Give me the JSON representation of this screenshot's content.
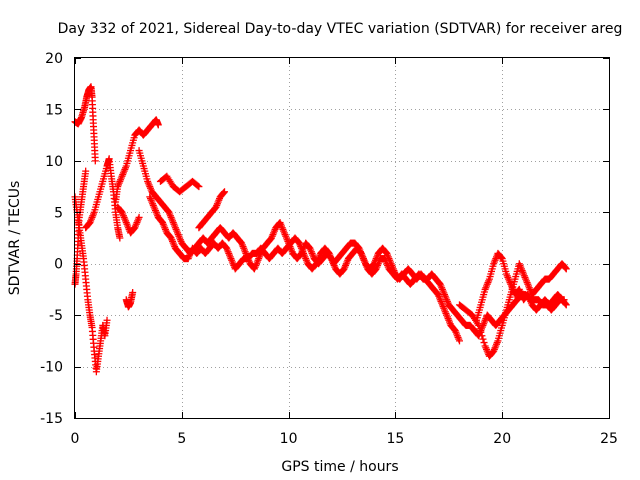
{
  "chart_data": {
    "type": "scatter",
    "title": "Day 332 of 2021, Sidereal Day-to-day VTEC variation (SDTVAR) for receiver areg",
    "xlabel": "GPS time / hours",
    "ylabel": "SDTVAR / TECUs",
    "xlim": [
      0,
      25
    ],
    "ylim": [
      -15,
      20
    ],
    "xticks": [
      0,
      5,
      10,
      15,
      20,
      25
    ],
    "yticks": [
      -15,
      -10,
      -5,
      0,
      5,
      10,
      15,
      20
    ],
    "grid": true,
    "marker": "+",
    "color": "#ff0000",
    "series": [
      {
        "name": "trace-1",
        "values": [
          [
            0.0,
            13.8
          ],
          [
            0.15,
            13.6
          ],
          [
            0.3,
            14.2
          ],
          [
            0.45,
            15.2
          ],
          [
            0.55,
            16.2
          ],
          [
            0.65,
            16.9
          ],
          [
            0.75,
            17.2
          ],
          [
            0.8,
            16.2
          ],
          [
            0.85,
            14.0
          ],
          [
            0.9,
            12.0
          ],
          [
            0.95,
            10.0
          ]
        ]
      },
      {
        "name": "trace-2",
        "values": [
          [
            0.0,
            6.5
          ],
          [
            0.1,
            5.0
          ],
          [
            0.2,
            3.5
          ],
          [
            0.3,
            2.0
          ],
          [
            0.4,
            0.5
          ],
          [
            0.5,
            -1.5
          ],
          [
            0.6,
            -3.5
          ],
          [
            0.7,
            -5.0
          ],
          [
            0.8,
            -6.2
          ],
          [
            0.9,
            -8.5
          ],
          [
            1.0,
            -10.5
          ],
          [
            1.1,
            -9.0
          ],
          [
            1.2,
            -7.5
          ],
          [
            1.3,
            -6.0
          ],
          [
            1.4,
            -7.0
          ],
          [
            1.5,
            -5.5
          ]
        ]
      },
      {
        "name": "trace-3",
        "values": [
          [
            0.0,
            -2.0
          ],
          [
            0.05,
            -1.0
          ],
          [
            0.1,
            0.5
          ],
          [
            0.15,
            2.5
          ],
          [
            0.2,
            4.5
          ],
          [
            0.3,
            6.0
          ],
          [
            0.4,
            7.5
          ],
          [
            0.5,
            9.0
          ]
        ]
      },
      {
        "name": "trace-4",
        "values": [
          [
            0.5,
            3.5
          ],
          [
            0.7,
            4.0
          ],
          [
            0.9,
            5.0
          ],
          [
            1.1,
            6.5
          ],
          [
            1.3,
            8.0
          ],
          [
            1.5,
            9.5
          ],
          [
            1.6,
            10.2
          ],
          [
            1.7,
            8.5
          ],
          [
            1.8,
            7.0
          ],
          [
            1.9,
            5.0
          ],
          [
            2.0,
            3.5
          ],
          [
            2.1,
            2.5
          ]
        ]
      },
      {
        "name": "trace-5",
        "values": [
          [
            1.9,
            6.0
          ],
          [
            2.0,
            7.5
          ],
          [
            2.2,
            8.5
          ],
          [
            2.4,
            9.5
          ],
          [
            2.6,
            11.0
          ],
          [
            2.8,
            12.5
          ],
          [
            3.0,
            13.0
          ],
          [
            3.2,
            12.5
          ],
          [
            3.4,
            13.0
          ],
          [
            3.6,
            13.5
          ],
          [
            3.8,
            14.0
          ],
          [
            3.9,
            13.5
          ]
        ]
      },
      {
        "name": "trace-6",
        "values": [
          [
            2.0,
            5.5
          ],
          [
            2.2,
            5.0
          ],
          [
            2.4,
            4.0
          ],
          [
            2.6,
            3.0
          ],
          [
            2.8,
            3.5
          ],
          [
            3.0,
            4.5
          ]
        ]
      },
      {
        "name": "trace-7",
        "values": [
          [
            2.4,
            -3.5
          ],
          [
            2.5,
            -4.2
          ],
          [
            2.6,
            -3.8
          ],
          [
            2.7,
            -2.8
          ]
        ]
      },
      {
        "name": "trace-8",
        "values": [
          [
            3.0,
            11.0
          ],
          [
            3.2,
            9.5
          ],
          [
            3.4,
            8.0
          ],
          [
            3.6,
            7.0
          ],
          [
            3.8,
            6.5
          ],
          [
            4.0,
            6.0
          ],
          [
            4.2,
            5.5
          ],
          [
            4.4,
            5.0
          ],
          [
            4.6,
            4.0
          ],
          [
            4.8,
            3.0
          ],
          [
            5.0,
            2.0
          ],
          [
            5.2,
            1.5
          ],
          [
            5.4,
            1.0
          ],
          [
            5.6,
            1.5
          ],
          [
            5.8,
            2.0
          ],
          [
            6.0,
            2.5
          ],
          [
            6.2,
            2.0
          ],
          [
            6.4,
            2.5
          ],
          [
            6.6,
            3.0
          ],
          [
            6.8,
            3.5
          ],
          [
            7.0,
            3.0
          ],
          [
            7.2,
            2.5
          ],
          [
            7.4,
            3.0
          ],
          [
            7.6,
            2.5
          ],
          [
            7.8,
            2.0
          ],
          [
            8.0,
            1.0
          ],
          [
            8.2,
            0.0
          ],
          [
            8.4,
            -0.5
          ],
          [
            8.6,
            0.5
          ],
          [
            8.8,
            1.5
          ],
          [
            9.0,
            2.0
          ],
          [
            9.2,
            2.5
          ],
          [
            9.4,
            3.5
          ],
          [
            9.6,
            4.0
          ],
          [
            9.8,
            3.0
          ],
          [
            10.0,
            2.0
          ],
          [
            10.2,
            1.0
          ],
          [
            10.4,
            0.5
          ],
          [
            10.6,
            1.0
          ],
          [
            10.8,
            2.0
          ],
          [
            11.0,
            1.5
          ],
          [
            11.2,
            0.5
          ],
          [
            11.4,
            0.0
          ],
          [
            11.6,
            0.5
          ],
          [
            11.8,
            1.0
          ],
          [
            12.0,
            0.5
          ],
          [
            12.2,
            -0.5
          ],
          [
            12.4,
            -1.0
          ],
          [
            12.6,
            -0.5
          ],
          [
            12.8,
            0.5
          ],
          [
            13.0,
            1.0
          ],
          [
            13.2,
            1.5
          ],
          [
            13.4,
            1.0
          ],
          [
            13.6,
            0.0
          ],
          [
            13.8,
            -0.5
          ],
          [
            14.0,
            0.0
          ],
          [
            14.2,
            1.0
          ],
          [
            14.4,
            1.5
          ],
          [
            14.6,
            1.0
          ],
          [
            14.8,
            0.0
          ],
          [
            15.0,
            -1.0
          ],
          [
            15.2,
            -1.5
          ],
          [
            15.4,
            -1.0
          ],
          [
            15.6,
            -0.5
          ],
          [
            15.8,
            -1.0
          ],
          [
            16.0,
            -1.5
          ],
          [
            16.2,
            -1.0
          ],
          [
            16.4,
            -1.5
          ],
          [
            16.6,
            -2.0
          ],
          [
            16.8,
            -2.5
          ],
          [
            17.0,
            -3.0
          ],
          [
            17.2,
            -4.0
          ],
          [
            17.4,
            -5.0
          ],
          [
            17.6,
            -6.0
          ],
          [
            17.8,
            -6.5
          ],
          [
            18.0,
            -7.5
          ]
        ]
      },
      {
        "name": "trace-9",
        "values": [
          [
            3.5,
            6.5
          ],
          [
            3.7,
            5.5
          ],
          [
            3.9,
            4.5
          ],
          [
            4.1,
            4.0
          ],
          [
            4.3,
            3.0
          ],
          [
            4.5,
            2.5
          ],
          [
            4.7,
            1.5
          ],
          [
            4.9,
            1.0
          ],
          [
            5.1,
            0.5
          ],
          [
            5.3,
            0.5
          ],
          [
            5.5,
            1.5
          ],
          [
            5.7,
            1.0
          ],
          [
            5.9,
            1.5
          ],
          [
            6.1,
            1.0
          ],
          [
            6.3,
            1.5
          ],
          [
            6.5,
            2.0
          ],
          [
            6.7,
            1.5
          ],
          [
            6.9,
            2.0
          ],
          [
            7.1,
            1.5
          ],
          [
            7.3,
            0.5
          ],
          [
            7.5,
            -0.5
          ],
          [
            7.7,
            0.0
          ],
          [
            7.9,
            0.5
          ],
          [
            8.1,
            0.5
          ],
          [
            8.3,
            1.0
          ],
          [
            8.5,
            1.0
          ],
          [
            8.7,
            1.5
          ],
          [
            8.9,
            1.0
          ],
          [
            9.1,
            0.5
          ],
          [
            9.3,
            1.0
          ],
          [
            9.5,
            1.5
          ],
          [
            9.7,
            1.0
          ],
          [
            9.9,
            1.5
          ],
          [
            10.1,
            2.0
          ],
          [
            10.3,
            2.5
          ],
          [
            10.5,
            2.0
          ],
          [
            10.7,
            1.0
          ],
          [
            10.9,
            0.0
          ],
          [
            11.1,
            -0.5
          ],
          [
            11.3,
            0.0
          ],
          [
            11.5,
            1.0
          ],
          [
            11.7,
            1.5
          ],
          [
            11.9,
            1.0
          ],
          [
            12.1,
            0.0
          ],
          [
            12.3,
            0.5
          ],
          [
            12.5,
            1.0
          ],
          [
            12.7,
            1.5
          ],
          [
            12.9,
            2.0
          ],
          [
            13.1,
            2.0
          ],
          [
            13.3,
            1.5
          ],
          [
            13.5,
            0.5
          ],
          [
            13.7,
            -0.5
          ],
          [
            13.9,
            -1.0
          ],
          [
            14.1,
            -0.5
          ],
          [
            14.3,
            0.5
          ],
          [
            14.5,
            0.5
          ],
          [
            14.7,
            -0.5
          ],
          [
            14.9,
            -1.0
          ],
          [
            15.1,
            -1.5
          ],
          [
            15.3,
            -1.0
          ],
          [
            15.5,
            -1.5
          ],
          [
            15.7,
            -2.0
          ],
          [
            15.9,
            -1.5
          ],
          [
            16.1,
            -1.0
          ],
          [
            16.3,
            -1.5
          ],
          [
            16.5,
            -1.5
          ],
          [
            16.7,
            -1.0
          ],
          [
            16.9,
            -1.5
          ],
          [
            17.1,
            -2.0
          ],
          [
            17.3,
            -3.0
          ],
          [
            17.5,
            -4.0
          ],
          [
            17.7,
            -4.5
          ],
          [
            17.9,
            -5.0
          ],
          [
            18.1,
            -5.5
          ],
          [
            18.3,
            -6.0
          ],
          [
            18.5,
            -6.0
          ],
          [
            18.7,
            -6.5
          ],
          [
            18.9,
            -7.0
          ],
          [
            19.1,
            -6.0
          ],
          [
            19.3,
            -5.0
          ],
          [
            19.5,
            -5.5
          ],
          [
            19.7,
            -6.0
          ],
          [
            19.9,
            -5.5
          ],
          [
            20.1,
            -5.0
          ],
          [
            20.3,
            -4.5
          ],
          [
            20.5,
            -4.0
          ],
          [
            20.7,
            -3.5
          ],
          [
            20.9,
            -3.0
          ],
          [
            21.1,
            -3.0
          ],
          [
            21.3,
            -3.5
          ],
          [
            21.5,
            -3.5
          ],
          [
            21.7,
            -3.5
          ],
          [
            21.9,
            -4.0
          ],
          [
            22.1,
            -4.0
          ],
          [
            22.3,
            -4.5
          ],
          [
            22.5,
            -4.0
          ],
          [
            22.7,
            -3.5
          ],
          [
            22.9,
            -3.5
          ]
        ]
      },
      {
        "name": "trace-10",
        "values": [
          [
            4.0,
            8.0
          ],
          [
            4.3,
            8.5
          ],
          [
            4.6,
            7.5
          ],
          [
            4.9,
            7.0
          ],
          [
            5.2,
            7.5
          ],
          [
            5.5,
            8.0
          ],
          [
            5.8,
            7.5
          ]
        ]
      },
      {
        "name": "trace-11",
        "values": [
          [
            5.8,
            3.5
          ],
          [
            6.0,
            4.0
          ],
          [
            6.2,
            4.5
          ],
          [
            6.4,
            5.0
          ],
          [
            6.6,
            5.5
          ],
          [
            6.8,
            6.5
          ],
          [
            7.0,
            7.0
          ]
        ]
      },
      {
        "name": "trace-12",
        "values": [
          [
            18.0,
            -4.0
          ],
          [
            18.3,
            -4.5
          ],
          [
            18.6,
            -5.0
          ],
          [
            18.9,
            -6.0
          ],
          [
            19.2,
            -8.0
          ],
          [
            19.4,
            -9.0
          ],
          [
            19.6,
            -8.5
          ],
          [
            19.8,
            -7.5
          ],
          [
            20.0,
            -6.0
          ],
          [
            20.2,
            -4.5
          ],
          [
            20.4,
            -3.0
          ],
          [
            20.6,
            -1.5
          ],
          [
            20.8,
            0.0
          ],
          [
            21.0,
            -1.0
          ],
          [
            21.2,
            -2.0
          ],
          [
            21.4,
            -3.0
          ],
          [
            21.6,
            -2.5
          ],
          [
            21.8,
            -2.0
          ],
          [
            22.0,
            -1.5
          ],
          [
            22.2,
            -1.5
          ],
          [
            22.4,
            -1.0
          ],
          [
            22.6,
            -0.5
          ],
          [
            22.8,
            0.0
          ],
          [
            23.0,
            -0.5
          ]
        ]
      },
      {
        "name": "trace-13",
        "values": [
          [
            18.8,
            -5.5
          ],
          [
            19.0,
            -4.0
          ],
          [
            19.2,
            -2.5
          ],
          [
            19.4,
            -1.5
          ],
          [
            19.6,
            0.0
          ],
          [
            19.8,
            1.0
          ],
          [
            20.0,
            0.5
          ],
          [
            20.2,
            -1.0
          ],
          [
            20.4,
            -2.0
          ],
          [
            20.6,
            -3.0
          ],
          [
            20.8,
            -2.5
          ],
          [
            21.0,
            -3.5
          ],
          [
            21.2,
            -3.0
          ],
          [
            21.4,
            -4.0
          ],
          [
            21.6,
            -4.5
          ],
          [
            21.8,
            -4.0
          ],
          [
            22.0,
            -3.5
          ],
          [
            22.2,
            -4.0
          ],
          [
            22.4,
            -3.5
          ],
          [
            22.6,
            -3.0
          ],
          [
            22.8,
            -3.5
          ],
          [
            23.0,
            -4.0
          ]
        ]
      }
    ]
  }
}
